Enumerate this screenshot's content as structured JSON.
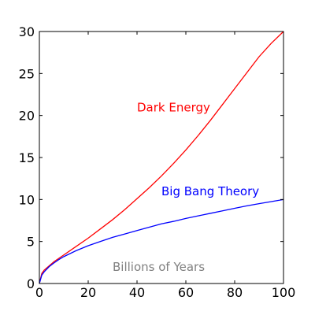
{
  "chart_data": {
    "type": "line",
    "title": "",
    "xlabel": "",
    "ylabel": "",
    "xlim": [
      0,
      100
    ],
    "ylim": [
      0,
      30
    ],
    "x_ticks": [
      0,
      20,
      40,
      60,
      80,
      100
    ],
    "y_ticks": [
      0,
      5,
      10,
      15,
      20,
      25,
      30
    ],
    "grid": false,
    "series": [
      {
        "color": "#ff0000",
        "x": [
          0,
          1,
          2,
          4,
          6,
          8,
          10,
          15,
          20,
          25,
          30,
          35,
          40,
          45,
          50,
          55,
          60,
          65,
          70,
          75,
          80,
          85,
          90,
          95,
          100
        ],
        "y": [
          0,
          1.2,
          1.6,
          2.1,
          2.6,
          3.0,
          3.4,
          4.4,
          5.4,
          6.5,
          7.6,
          8.8,
          10.1,
          11.4,
          12.8,
          14.3,
          15.9,
          17.6,
          19.4,
          21.3,
          23.2,
          25.1,
          27.0,
          28.6,
          30.0
        ]
      },
      {
        "color": "#0000ff",
        "x": [
          0,
          1,
          2,
          4,
          6,
          8,
          10,
          15,
          20,
          25,
          30,
          35,
          40,
          45,
          50,
          55,
          60,
          65,
          70,
          75,
          80,
          85,
          90,
          95,
          100
        ],
        "y": [
          0,
          1.0,
          1.4,
          2.0,
          2.45,
          2.85,
          3.2,
          3.9,
          4.5,
          5.0,
          5.5,
          5.9,
          6.3,
          6.7,
          7.1,
          7.4,
          7.75,
          8.05,
          8.35,
          8.65,
          8.95,
          9.25,
          9.5,
          9.75,
          10.0
        ]
      }
    ],
    "annotations": [
      {
        "text": "Dark Energy",
        "x": 40,
        "y": 20.5,
        "color": "#ff0000"
      },
      {
        "text": "Big Bang Theory",
        "x": 50,
        "y": 10.5,
        "color": "#0000ff"
      },
      {
        "text": "Billions of Years",
        "x": 30,
        "y": 1.5,
        "color": "#808080"
      }
    ]
  }
}
